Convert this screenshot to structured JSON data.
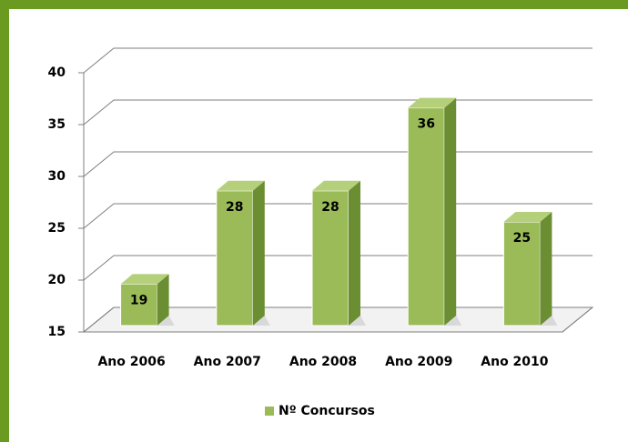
{
  "chart_data": {
    "type": "bar",
    "categories": [
      "Ano 2006",
      "Ano 2007",
      "Ano 2008",
      "Ano 2009",
      "Ano 2010"
    ],
    "series": [
      {
        "name": "Nº Concursos",
        "color": "#9bbb59",
        "values": [
          19,
          28,
          28,
          36,
          25
        ]
      }
    ],
    "ylim": [
      15,
      40
    ],
    "yticks": [
      15,
      20,
      25,
      30,
      35,
      40
    ],
    "grid": true,
    "legend": "bottom"
  }
}
